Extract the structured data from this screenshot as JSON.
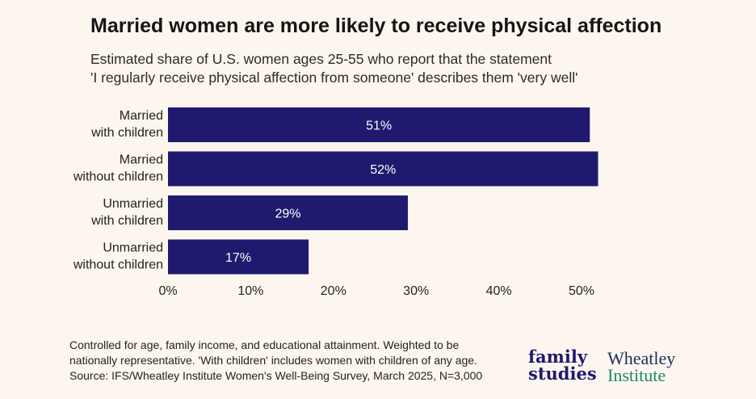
{
  "title": "Married women are more likely to receive physical affection",
  "subtitle": {
    "line1": "Estimated share of U.S. women ages 25-55 who report that the statement",
    "line2": "'I regularly receive physical affection from someone' describes them 'very well'"
  },
  "colors": {
    "bar": "#1f1a6e",
    "background": "#fdf6ef"
  },
  "chart_data": {
    "type": "bar",
    "orientation": "horizontal",
    "categories": [
      [
        "Married",
        "with children"
      ],
      [
        "Married",
        "without children"
      ],
      [
        "Unmarried",
        "with children"
      ],
      [
        "Unmarried",
        "without children"
      ]
    ],
    "values": [
      51,
      52,
      29,
      17
    ],
    "value_labels": [
      "51%",
      "52%",
      "29%",
      "17%"
    ],
    "xlim": [
      0,
      52
    ],
    "xticks": [
      0,
      10,
      20,
      30,
      40,
      50
    ],
    "xtick_labels": [
      "0%",
      "10%",
      "20%",
      "30%",
      "40%",
      "50%"
    ],
    "grid": false
  },
  "footnote": {
    "line1": "Controlled for age, family income, and educational attainment. Weighted to be",
    "line2": "nationally representative. 'With children' includes women with children of any age.",
    "line3": "Source: IFS/Wheatley Institute Women's Well-Being Survey, March 2025, N=3,000"
  },
  "logos": {
    "family_studies": {
      "line1": "family",
      "line2": "studies"
    },
    "wheatley": {
      "line1": "Wheatley",
      "line2": "Institute"
    }
  }
}
